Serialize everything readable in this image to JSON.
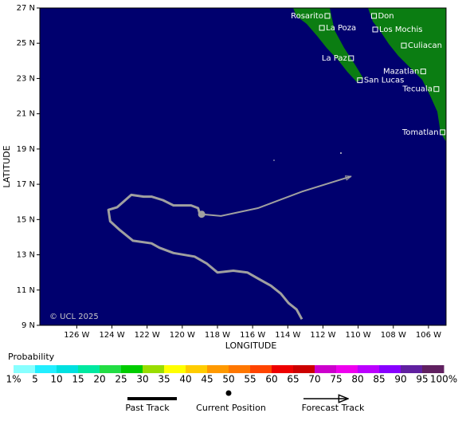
{
  "map": {
    "xlabel": "LONGITUDE",
    "ylabel": "LATITUDE",
    "copyright": "© UCL 2025",
    "xlim": [
      -128.1,
      -105
    ],
    "ylim": [
      9,
      27
    ],
    "xticks": [
      {
        "value": -126,
        "label": "126 W"
      },
      {
        "value": -124,
        "label": "124 W"
      },
      {
        "value": -122,
        "label": "122 W"
      },
      {
        "value": -120,
        "label": "120 W"
      },
      {
        "value": -118,
        "label": "118 W"
      },
      {
        "value": -116,
        "label": "116 W"
      },
      {
        "value": -114,
        "label": "114 W"
      },
      {
        "value": -112,
        "label": "112 W"
      },
      {
        "value": -110,
        "label": "110 W"
      },
      {
        "value": -108,
        "label": "108 W"
      },
      {
        "value": -106,
        "label": "106 W"
      }
    ],
    "yticks": [
      {
        "value": 9,
        "label": "9 N"
      },
      {
        "value": 11,
        "label": "11 N"
      },
      {
        "value": 13,
        "label": "13 N"
      },
      {
        "value": 15,
        "label": "15 N"
      },
      {
        "value": 17,
        "label": "17 N"
      },
      {
        "value": 19,
        "label": "19 N"
      },
      {
        "value": 21,
        "label": "21 N"
      },
      {
        "value": 23,
        "label": "23 N"
      },
      {
        "value": 25,
        "label": "25 N"
      },
      {
        "value": 27,
        "label": "27 N"
      }
    ],
    "cities": [
      {
        "name": "Rosarito",
        "lon": -111.75,
        "lat": 26.55
      },
      {
        "name": "Don",
        "lon": -109.1,
        "lat": 26.55
      },
      {
        "name": "La Poza",
        "lon": -112.06,
        "lat": 25.87
      },
      {
        "name": "Los Mochis",
        "lon": -109.03,
        "lat": 25.78
      },
      {
        "name": "Culiacan",
        "lon": -107.4,
        "lat": 24.87
      },
      {
        "name": "La Paz",
        "lon": -110.4,
        "lat": 24.15
      },
      {
        "name": "Mazatlan",
        "lon": -106.3,
        "lat": 23.4
      },
      {
        "name": "San Lucas",
        "lon": -109.9,
        "lat": 22.9
      },
      {
        "name": "Tecuala",
        "lon": -105.55,
        "lat": 22.4
      },
      {
        "name": "Tomatlan",
        "lon": -105.2,
        "lat": 19.95
      }
    ],
    "past_track": {
      "lon": [
        -113.2,
        -113.5,
        -113.96,
        -114.4,
        -114.96,
        -115.6,
        -116.3,
        -117.1,
        -118.0,
        -118.6,
        -119.3,
        -120.5,
        -121.3,
        -121.75,
        -122.8,
        -123.55,
        -124.1,
        -124.2,
        -123.7,
        -122.9,
        -122.2,
        -121.75,
        -121.1,
        -120.5,
        -119.5,
        -119.1,
        -119.0,
        -118.9
      ],
      "lat": [
        9.35,
        9.9,
        10.26,
        10.8,
        11.25,
        11.6,
        12.0,
        12.1,
        12.0,
        12.5,
        12.9,
        13.1,
        13.4,
        13.65,
        13.8,
        14.4,
        14.9,
        15.55,
        15.7,
        16.4,
        16.3,
        16.3,
        16.1,
        15.8,
        15.8,
        15.65,
        15.3,
        15.3
      ]
    },
    "current_position": {
      "lon": -118.9,
      "lat": 15.3
    },
    "forecast_track": {
      "lon": [
        -118.9,
        -117.8,
        -115.7,
        -113.15,
        -110.4
      ],
      "lat": [
        15.3,
        15.2,
        15.65,
        16.6,
        17.45
      ]
    },
    "track_color": "#a0a0a0"
  },
  "legend": {
    "title": "Probability",
    "stops": [
      {
        "value": 1,
        "label": "1%"
      },
      5,
      10,
      15,
      20,
      25,
      30,
      35,
      40,
      45,
      50,
      55,
      60,
      65,
      70,
      75,
      80,
      85,
      90,
      95,
      {
        "value": 100,
        "label": "100%"
      }
    ],
    "colors": [
      "#88ffff",
      "#22eeff",
      "#00e0e0",
      "#00e8a0",
      "#22dd44",
      "#00cc00",
      "#99dd00",
      "#ffff00",
      "#ffcc00",
      "#ff9900",
      "#ff7700",
      "#ff4400",
      "#ee0000",
      "#cc0000",
      "#cc00cc",
      "#ee00ee",
      "#bb00ff",
      "#8800ff",
      "#6020a0",
      "#602060"
    ],
    "items": [
      "Past Track",
      "Current Position",
      "Forecast Track"
    ]
  }
}
